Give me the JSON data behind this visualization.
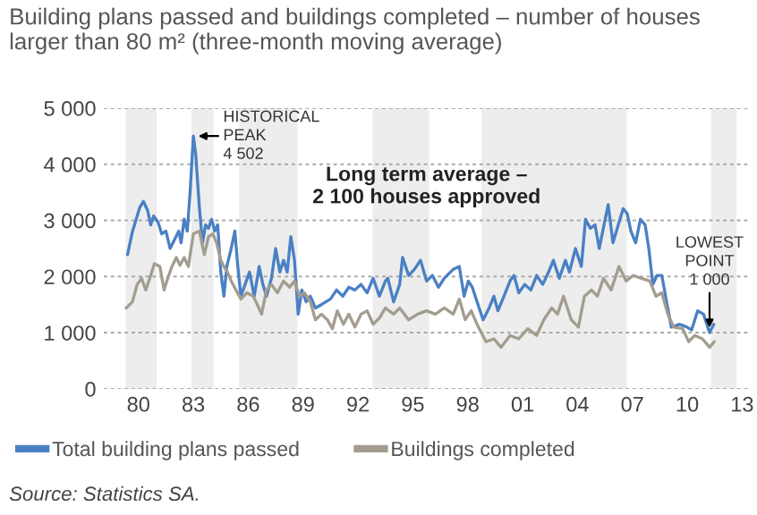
{
  "chart_data": {
    "type": "line",
    "title": "Building plans passed and buildings completed – number of houses larger than 80 m² (three-month moving average)",
    "series": [
      {
        "name": "Total building plans passed",
        "color": "#4a80c4",
        "x": [
          1979.4,
          1979.67,
          1980.07,
          1980.27,
          1980.5,
          1980.67,
          1980.83,
          1981.07,
          1981.27,
          1981.5,
          1981.73,
          1981.93,
          1982.2,
          1982.33,
          1982.5,
          1982.67,
          1982.83,
          1983.0,
          1983.13,
          1983.33,
          1983.5,
          1983.67,
          1983.83,
          1984.0,
          1984.17,
          1984.33,
          1984.5,
          1984.67,
          1984.83,
          1985.07,
          1985.27,
          1985.43,
          1985.6,
          1985.83,
          1986.07,
          1986.33,
          1986.6,
          1986.8,
          1987.0,
          1987.27,
          1987.5,
          1987.73,
          1987.93,
          1988.13,
          1988.33,
          1988.53,
          1988.73,
          1988.93,
          1989.17,
          1989.4,
          1989.67,
          1990.0,
          1990.5,
          1990.83,
          1991.17,
          1991.5,
          1991.83,
          1992.17,
          1992.5,
          1992.83,
          1993.17,
          1993.5,
          1993.63,
          1993.95,
          1994.28,
          1994.44,
          1994.77,
          1995.09,
          1995.42,
          1995.75,
          1996.07,
          1996.4,
          1996.72,
          1997.21,
          1997.54,
          1997.8,
          1998.03,
          1998.25,
          1998.51,
          1998.84,
          1999.17,
          1999.43,
          1999.65,
          1999.98,
          2000.31,
          2000.53,
          2000.79,
          2001.12,
          2001.45,
          2001.77,
          2002.1,
          2002.42,
          2002.68,
          2003.01,
          2003.34,
          2003.56,
          2003.89,
          2004.21,
          2004.44,
          2004.7,
          2004.96,
          2005.19,
          2005.45,
          2005.68,
          2005.94,
          2006.23,
          2006.5,
          2006.72,
          2006.92,
          2007.18,
          2007.44,
          2007.7,
          2007.9,
          2008.12,
          2008.35,
          2008.61,
          2008.87,
          2009.13,
          2009.59,
          2009.98,
          2010.24,
          2010.57,
          2010.89,
          2011.22,
          2011.45
        ],
        "values": [
          2390,
          2800,
          3230,
          3340,
          3180,
          2920,
          3080,
          2970,
          2760,
          2810,
          2500,
          2630,
          2810,
          2600,
          3020,
          2810,
          3540,
          4502,
          4180,
          3230,
          2600,
          2920,
          2860,
          3020,
          2810,
          2920,
          2080,
          1650,
          2180,
          2500,
          2810,
          2180,
          1650,
          1860,
          2080,
          1650,
          2180,
          1860,
          1650,
          1970,
          2500,
          2080,
          2290,
          2080,
          2710,
          2290,
          1330,
          1760,
          1550,
          1650,
          1440,
          1500,
          1600,
          1760,
          1650,
          1810,
          1760,
          1860,
          1710,
          1970,
          1650,
          1920,
          1970,
          1550,
          1860,
          2340,
          2020,
          2130,
          2290,
          1920,
          2020,
          1810,
          1970,
          2130,
          2180,
          1650,
          1920,
          1810,
          1550,
          1230,
          1440,
          1650,
          1390,
          1650,
          1920,
          2020,
          1710,
          1860,
          1760,
          2020,
          1860,
          2080,
          2290,
          1970,
          2290,
          2080,
          2500,
          2180,
          3020,
          2860,
          2920,
          2500,
          2920,
          3280,
          2600,
          2920,
          3210,
          3120,
          2810,
          2600,
          3020,
          2920,
          2500,
          1860,
          2020,
          2020,
          1550,
          1100,
          1150,
          1100,
          1050,
          1390,
          1330,
          1000,
          1150
        ]
      },
      {
        "name": "Buildings completed",
        "color": "#a39d8f",
        "x": [
          1979.33,
          1979.67,
          1979.93,
          1980.17,
          1980.4,
          1980.67,
          1980.87,
          1981.17,
          1981.4,
          1981.6,
          1981.83,
          1982.07,
          1982.27,
          1982.5,
          1982.73,
          1983.0,
          1983.33,
          1983.6,
          1983.83,
          1984.07,
          1984.27,
          1984.5,
          1984.67,
          1984.87,
          1985.07,
          1985.33,
          1985.6,
          1985.93,
          1986.27,
          1986.5,
          1986.73,
          1987.0,
          1987.27,
          1987.6,
          1987.93,
          1988.27,
          1988.53,
          1988.8,
          1989.07,
          1989.4,
          1989.67,
          1990.0,
          1990.33,
          1990.6,
          1990.87,
          1991.2,
          1991.5,
          1991.83,
          1992.17,
          1992.5,
          1992.83,
          1993.17,
          1993.5,
          1993.95,
          1994.28,
          1994.77,
          1995.26,
          1995.75,
          1996.23,
          1996.72,
          1997.21,
          1997.54,
          1997.86,
          1998.19,
          1998.51,
          1999.0,
          1999.43,
          1999.82,
          2000.31,
          2000.79,
          2001.28,
          2001.77,
          2002.16,
          2002.59,
          2002.91,
          2003.24,
          2003.66,
          2004.05,
          2004.38,
          2004.77,
          2005.09,
          2005.42,
          2005.84,
          2006.27,
          2006.66,
          2007.05,
          2007.47,
          2007.96,
          2008.29,
          2008.61,
          2008.94,
          2009.26,
          2009.75,
          2010.08,
          2010.41,
          2010.83,
          2011.22,
          2011.48
        ],
        "values": [
          1440,
          1550,
          1860,
          1970,
          1760,
          2020,
          2230,
          2180,
          1760,
          1970,
          2180,
          2340,
          2200,
          2340,
          2180,
          2760,
          2810,
          2390,
          2710,
          2760,
          2600,
          2290,
          2180,
          2080,
          1920,
          1760,
          1600,
          1710,
          1650,
          1500,
          1330,
          1760,
          1860,
          1710,
          1920,
          1810,
          1920,
          1650,
          1710,
          1550,
          1230,
          1330,
          1230,
          1070,
          1390,
          1150,
          1330,
          1100,
          1330,
          1390,
          1150,
          1260,
          1440,
          1330,
          1440,
          1230,
          1330,
          1390,
          1330,
          1440,
          1330,
          1600,
          1230,
          1390,
          1150,
          840,
          890,
          740,
          950,
          890,
          1070,
          950,
          1230,
          1440,
          1330,
          1650,
          1230,
          1100,
          1650,
          1760,
          1650,
          1970,
          1760,
          2180,
          1920,
          2020,
          1970,
          1920,
          1650,
          1710,
          1330,
          1100,
          1070,
          840,
          950,
          890,
          740,
          840
        ]
      }
    ],
    "xlim": [
      1978.1,
      2013.4
    ],
    "xticks": [
      {
        "value": 1980,
        "label": "80"
      },
      {
        "value": 1983,
        "label": "83"
      },
      {
        "value": 1986,
        "label": "86"
      },
      {
        "value": 1989,
        "label": "89"
      },
      {
        "value": 1992,
        "label": "92"
      },
      {
        "value": 1995,
        "label": "95"
      },
      {
        "value": 1998,
        "label": "98"
      },
      {
        "value": 2001,
        "label": "01"
      },
      {
        "value": 2004,
        "label": "04"
      },
      {
        "value": 2007,
        "label": "07"
      },
      {
        "value": 2010,
        "label": "10"
      },
      {
        "value": 2013,
        "label": "13"
      }
    ],
    "ylim": [
      0,
      5000
    ],
    "yticks": [
      0,
      {
        "value": 1000,
        "label": "1 000"
      },
      {
        "value": 2000,
        "label": "2 000"
      },
      {
        "value": 3000,
        "label": "3 000"
      },
      {
        "value": 4000,
        "label": "4 000"
      },
      {
        "value": 5000,
        "label": "5 000"
      }
    ],
    "grid": "y",
    "legend": "bottom",
    "bands": [
      {
        "axis": "x",
        "from": 1979.3,
        "to": 1981.0,
        "color": "#ededed"
      },
      {
        "axis": "x",
        "from": 1982.9,
        "to": 1984.1,
        "color": "#ededed"
      },
      {
        "axis": "x",
        "from": 1985.5,
        "to": 1988.7,
        "color": "#ededed"
      },
      {
        "axis": "x",
        "from": 1992.8,
        "to": 1995.9,
        "color": "#ededed"
      },
      {
        "axis": "x",
        "from": 1998.75,
        "to": 2006.7,
        "color": "#ededed"
      },
      {
        "axis": "x",
        "from": 2011.3,
        "to": 2012.7,
        "color": "#ededed"
      }
    ],
    "annotations": [
      {
        "text": "HISTORICAL\nPEAK\n4 502",
        "x": 1983.0,
        "y": 4502
      },
      "Long term average –\n2 100 houses approved",
      {
        "text": "LOWEST\nPOINT\n1 000",
        "x": 2011.22,
        "y": 1000
      },
      "Source: Statistics SA."
    ]
  }
}
